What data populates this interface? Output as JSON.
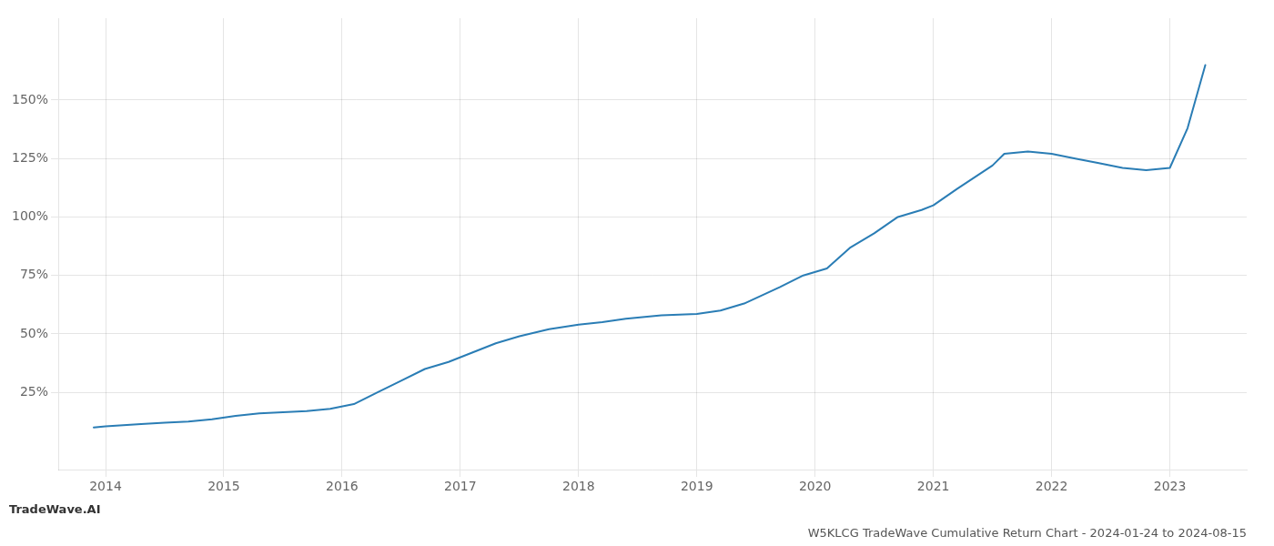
{
  "chart_data": {
    "type": "line",
    "title": "W5KLCG TradeWave Cumulative Return Chart - 2024-01-24 to 2024-08-15",
    "annotations": [
      "TradeWave.AI"
    ],
    "x": [
      2013.9,
      2014.0,
      2014.15,
      2014.3,
      2014.5,
      2014.7,
      2014.9,
      2015.1,
      2015.3,
      2015.5,
      2015.7,
      2015.9,
      2016.1,
      2016.3,
      2016.5,
      2016.7,
      2016.9,
      2017.1,
      2017.3,
      2017.5,
      2017.75,
      2018.0,
      2018.2,
      2018.4,
      2018.5,
      2018.7,
      2019.0,
      2019.2,
      2019.4,
      2019.7,
      2019.9,
      2020.1,
      2020.3,
      2020.5,
      2020.7,
      2020.9,
      2021.0,
      2021.2,
      2021.5,
      2021.6,
      2021.8,
      2022.0,
      2022.2,
      2022.4,
      2022.6,
      2022.8,
      2023.0,
      2023.15,
      2023.3
    ],
    "values": [
      10,
      10.5,
      11,
      11.5,
      12,
      12.5,
      13.5,
      15,
      16,
      16.5,
      17,
      18,
      20,
      25,
      30,
      35,
      38,
      42,
      46,
      49,
      52,
      54,
      55,
      56.5,
      57,
      58,
      58.5,
      60,
      63,
      70,
      75,
      78,
      87,
      93,
      100,
      103,
      105,
      112,
      122,
      127,
      128,
      127,
      125,
      123,
      121,
      120,
      121,
      138,
      165
    ],
    "color": "#2a7db5",
    "xlim": [
      2013.6,
      2023.65
    ],
    "xticks": [
      2014,
      2015,
      2016,
      2017,
      2018,
      2019,
      2020,
      2021,
      2022,
      2023
    ],
    "ylim": [
      -8,
      185
    ],
    "yticks": [
      {
        "value": 25,
        "label": "25%"
      },
      {
        "value": 50,
        "label": "50%"
      },
      {
        "value": 75,
        "label": "75%"
      },
      {
        "value": 100,
        "label": "100%"
      },
      {
        "value": 125,
        "label": "125%"
      },
      {
        "value": 150,
        "label": "150%"
      }
    ],
    "grid": true
  }
}
